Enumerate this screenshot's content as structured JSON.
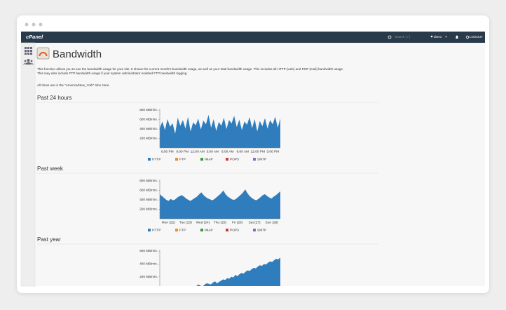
{
  "nav": {
    "logo": "cPanel",
    "search": "Search ( / )",
    "user": "demo",
    "logout": "LOGOUT"
  },
  "page": {
    "title": "Bandwidth",
    "description": [
      "This function allows you to see the bandwidth usage for your site. It shows the current month's bandwidth usage, as well as your total bandwidth usage. This includes all HTTP (web) and POP (mail) bandwidth usage.",
      "This may also include FTP bandwidth usage if your system administrator enabled FTP bandwidth logging."
    ],
    "timezone_note": "All times are in the \"America/New_York\" time zone."
  },
  "legend": [
    {
      "name": "HTTP",
      "color": "#2f7dbd"
    },
    {
      "name": "FTP",
      "color": "#f28a2e"
    },
    {
      "name": "IMAP",
      "color": "#3c9a3c"
    },
    {
      "name": "POP3",
      "color": "#d23a3a"
    },
    {
      "name": "SMTP",
      "color": "#9467bd"
    }
  ],
  "charts": [
    {
      "type": "area",
      "heading": "Past 24 hours",
      "color": "#2f7dbd",
      "show_legend": true,
      "xlabels": [
        "6:00 PM",
        "9:00 PM",
        "12:00 AM",
        "3:00 AM",
        "6:00 AM",
        "9:00 AM",
        "12:00 PM",
        "3:00 PM"
      ],
      "values": [
        420,
        560,
        380,
        610,
        450,
        520,
        300,
        640,
        470,
        590,
        410,
        660,
        350,
        540,
        480,
        620,
        390,
        580,
        500,
        700,
        430,
        610,
        360,
        550,
        470,
        640,
        400,
        590,
        520,
        680,
        440,
        600,
        380,
        560,
        490,
        650,
        420,
        610,
        350,
        570,
        460,
        630,
        410,
        590,
        500,
        660,
        430,
        620
      ],
      "ylim": [
        0,
        800
      ],
      "yticks": [
        {
          "value": 200,
          "label": "200 MB/min."
        },
        {
          "value": 400,
          "label": "400 MB/min."
        },
        {
          "value": 600,
          "label": "600 MB/min."
        },
        {
          "value": 800,
          "label": "800 MB/min."
        }
      ]
    },
    {
      "type": "area",
      "heading": "Past week",
      "color": "#2f7dbd",
      "show_legend": true,
      "xlabels": [
        "Mon (22)",
        "Tue (23)",
        "Wed (24)",
        "Thu (25)",
        "Fri (26)",
        "Sat (27)",
        "Sun (28)"
      ],
      "values": [
        520,
        480,
        440,
        400,
        380,
        420,
        390,
        410,
        450,
        480,
        500,
        470,
        430,
        400,
        380,
        410,
        440,
        470,
        520,
        560,
        500,
        460,
        430,
        410,
        390,
        420,
        460,
        500,
        540,
        600,
        520,
        470,
        440,
        410,
        400,
        430,
        470,
        510,
        560,
        620,
        540,
        480,
        440,
        410,
        390,
        420,
        460,
        500,
        520,
        480,
        450,
        430,
        470,
        500,
        540,
        580
      ],
      "ylim": [
        0,
        800
      ],
      "yticks": [
        {
          "value": 200,
          "label": "200 MB/min."
        },
        {
          "value": 400,
          "label": "400 MB/min."
        },
        {
          "value": 600,
          "label": "600 MB/min."
        },
        {
          "value": 800,
          "label": "800 MB/min."
        }
      ]
    },
    {
      "type": "area",
      "heading": "Past year",
      "color": "#2f7dbd",
      "show_legend": false,
      "xlabels": [],
      "values": [
        0,
        0,
        0,
        0,
        0,
        0,
        0,
        0,
        20,
        10,
        30,
        20,
        20,
        40,
        30,
        20,
        50,
        40,
        60,
        80,
        60,
        50,
        80,
        100,
        90,
        80,
        110,
        130,
        100,
        120,
        140,
        160,
        150,
        180,
        170,
        200,
        190,
        230,
        210,
        240,
        260,
        250,
        280,
        300,
        290,
        320,
        340,
        330,
        360,
        380,
        370,
        400,
        390,
        420,
        440,
        430,
        460,
        480,
        470,
        500
      ],
      "ylim": [
        0,
        600
      ],
      "yticks": [
        {
          "value": 200,
          "label": "200 MB/min."
        },
        {
          "value": 400,
          "label": "400 MB/min."
        },
        {
          "value": 600,
          "label": "600 MB/min."
        }
      ]
    }
  ]
}
